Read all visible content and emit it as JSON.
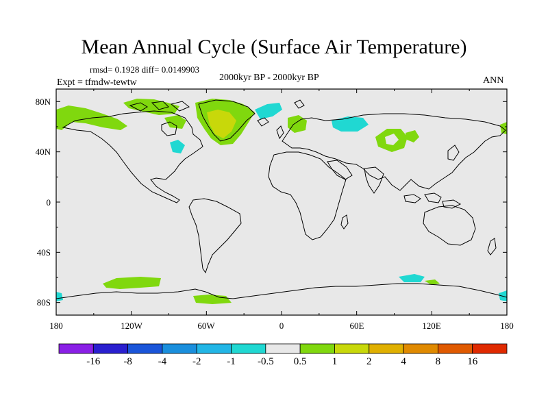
{
  "title": "Mean Annual Cycle (Surface Air Temperature)",
  "stats": "rmsd= 0.1928 diff= 0.0149903",
  "period": "2000kyr BP - 2000kyr BP",
  "experiment": "Expt = tfmdw-tewtw",
  "season": "ANN",
  "lat_labels": [
    "80N",
    "40N",
    "0",
    "40S",
    "80S"
  ],
  "lon_labels": [
    "180",
    "120W",
    "60W",
    "0",
    "60E",
    "120E",
    "180"
  ],
  "colorbar": {
    "colors": [
      "#8a1fe6",
      "#2a1fcf",
      "#1a55d9",
      "#1a8fdd",
      "#22b6e6",
      "#20d8d2",
      "#e8e8e8",
      "#80d80e",
      "#c8d80a",
      "#e0b000",
      "#e08a00",
      "#e05a00",
      "#e02a00"
    ],
    "labels": [
      "-16",
      "-8",
      "-4",
      "-2",
      "-1",
      "-0.5",
      "0.5",
      "1",
      "2",
      "4",
      "8",
      "16"
    ]
  },
  "colors": {
    "ocean_background": "#e8e8e8",
    "green": "#80d80e",
    "yellow": "#c8d80a",
    "cyan": "#20d8d2",
    "coast": "#000000"
  }
}
